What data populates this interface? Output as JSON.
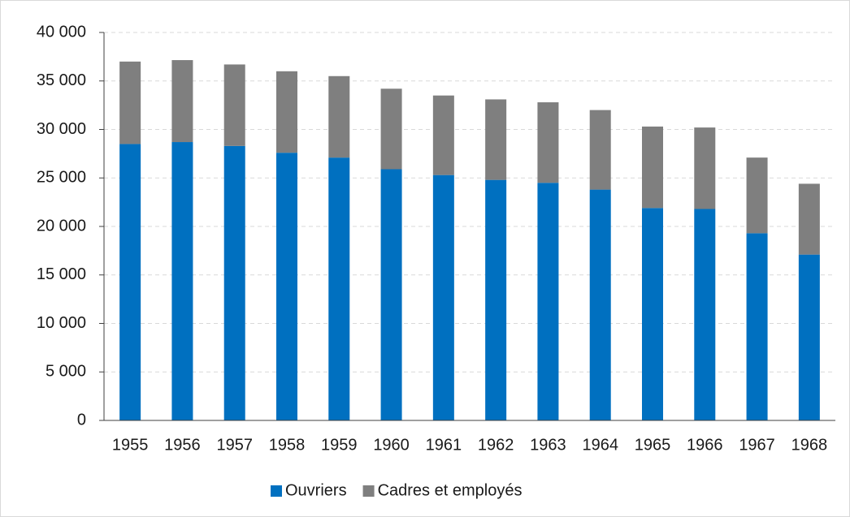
{
  "chart_data": {
    "type": "stacked-bar",
    "categories": [
      "1955",
      "1956",
      "1957",
      "1958",
      "1959",
      "1960",
      "1961",
      "1962",
      "1963",
      "1964",
      "1965",
      "1966",
      "1967",
      "1968"
    ],
    "series": [
      {
        "name": "Ouvriers",
        "color": "#0070c0",
        "values": [
          28500,
          28700,
          28300,
          27600,
          27100,
          25900,
          25300,
          24800,
          24500,
          23800,
          21900,
          21800,
          19300,
          17100
        ]
      },
      {
        "name": "Cadres et employés",
        "color": "#7f7f7f",
        "values": [
          8500,
          8450,
          8400,
          8400,
          8400,
          8300,
          8200,
          8300,
          8300,
          8200,
          8400,
          8400,
          7800,
          7300
        ]
      }
    ],
    "ylim": [
      0,
      40000
    ],
    "yticks": [
      0,
      {
        "value": 5000,
        "label": "5 000"
      },
      {
        "value": 10000,
        "label": "10 000"
      },
      {
        "value": 15000,
        "label": "15 000"
      },
      {
        "value": 20000,
        "label": "20 000"
      },
      {
        "value": 25000,
        "label": "25 000"
      },
      {
        "value": 30000,
        "label": "30 000"
      },
      {
        "value": 35000,
        "label": "35 000"
      },
      {
        "value": 40000,
        "label": "40 000"
      }
    ],
    "grid": true,
    "legend": "bottom"
  }
}
